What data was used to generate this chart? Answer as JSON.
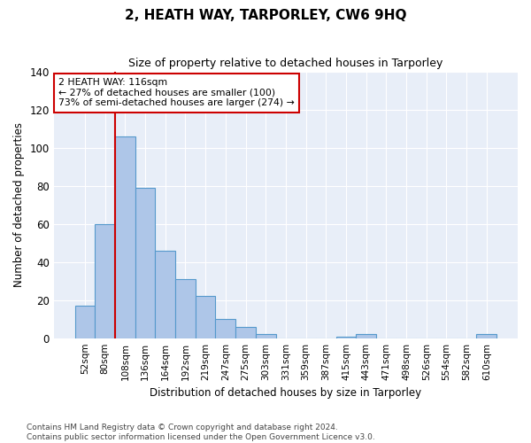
{
  "title": "2, HEATH WAY, TARPORLEY, CW6 9HQ",
  "subtitle": "Size of property relative to detached houses in Tarporley",
  "xlabel": "Distribution of detached houses by size in Tarporley",
  "ylabel": "Number of detached properties",
  "footnote1": "Contains HM Land Registry data © Crown copyright and database right 2024.",
  "footnote2": "Contains public sector information licensed under the Open Government Licence v3.0.",
  "categories": [
    "52sqm",
    "80sqm",
    "108sqm",
    "136sqm",
    "164sqm",
    "192sqm",
    "219sqm",
    "247sqm",
    "275sqm",
    "303sqm",
    "331sqm",
    "359sqm",
    "387sqm",
    "415sqm",
    "443sqm",
    "471sqm",
    "498sqm",
    "526sqm",
    "554sqm",
    "582sqm",
    "610sqm"
  ],
  "values": [
    17,
    60,
    106,
    79,
    46,
    31,
    22,
    10,
    6,
    2,
    0,
    0,
    0,
    1,
    2,
    0,
    0,
    0,
    0,
    0,
    2
  ],
  "bar_color": "#aec6e8",
  "bar_edge_color": "#5599cc",
  "ylim": [
    0,
    140
  ],
  "yticks": [
    0,
    20,
    40,
    60,
    80,
    100,
    120,
    140
  ],
  "vline_idx": 2,
  "vline_color": "#cc0000",
  "annotation_text": "2 HEATH WAY: 116sqm\n← 27% of detached houses are smaller (100)\n73% of semi-detached houses are larger (274) →",
  "annotation_box_color": "#ffffff",
  "annotation_box_edge": "#cc0000",
  "bg_color": "#e8eef8"
}
